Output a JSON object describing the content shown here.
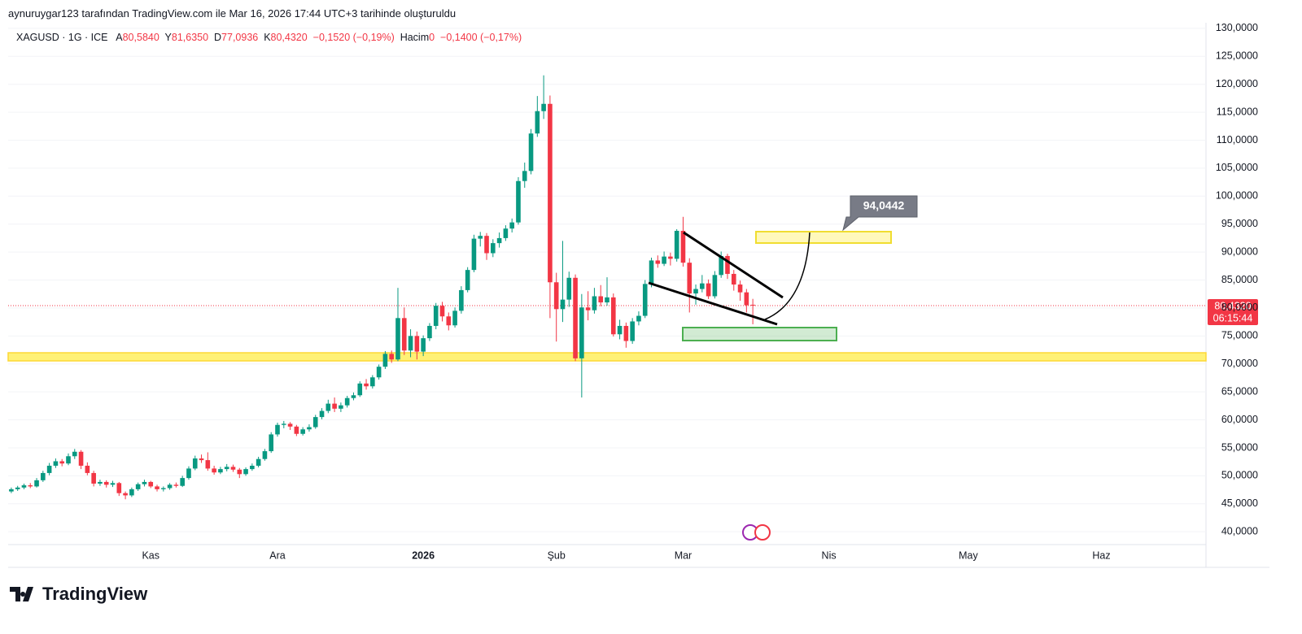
{
  "header": "aynuruygar123 tarafından TradingView.com ile Mar 16, 2026 17:44 UTC+3 tarihinde oluşturuldu",
  "legend": {
    "symbol": "XAGUSD · 1G · ICE",
    "open_label": "A",
    "open": "80,5840",
    "high_label": "Y",
    "high": "81,6350",
    "low_label": "D",
    "low": "77,0936",
    "close_label": "K",
    "close": "80,4320",
    "change": "−0,1520 (−0,19%)",
    "volume_label": "Hacim",
    "volume": "0",
    "volume_change": "−0,1400 (−0,17%)"
  },
  "price_tag": "80,4320",
  "countdown": "06:15:44",
  "target_label": "94,0442",
  "brand": "TradingView",
  "chart_data": {
    "type": "candlestick",
    "up_color": "#089981",
    "down_color": "#f23645",
    "grid": true,
    "ylim": [
      37.7,
      131.0
    ],
    "yticks": [
      {
        "value": 40,
        "label": "40,0000"
      },
      {
        "value": 45,
        "label": "45,0000"
      },
      {
        "value": 50,
        "label": "50,0000"
      },
      {
        "value": 55,
        "label": "55,0000"
      },
      {
        "value": 60,
        "label": "60,0000"
      },
      {
        "value": 65,
        "label": "65,0000"
      },
      {
        "value": 70,
        "label": "70,0000"
      },
      {
        "value": 75,
        "label": "75,0000"
      },
      {
        "value": 80,
        "label": "80,0000"
      },
      {
        "value": 85,
        "label": "85,0000"
      },
      {
        "value": 90,
        "label": "90,0000"
      },
      {
        "value": 95,
        "label": "95,0000"
      },
      {
        "value": 100,
        "label": "100,0000"
      },
      {
        "value": 105,
        "label": "105,0000"
      },
      {
        "value": 110,
        "label": "110,0000"
      },
      {
        "value": 115,
        "label": "115,0000"
      },
      {
        "value": 120,
        "label": "120,0000"
      },
      {
        "value": 125,
        "label": "125,0000"
      },
      {
        "value": 130,
        "label": "130,0000"
      }
    ],
    "last_price": 80.432,
    "categories": [
      null,
      null,
      null,
      null,
      null,
      null,
      null,
      null,
      null,
      null,
      null,
      null,
      null,
      null,
      null,
      null,
      null,
      null,
      null,
      null,
      null,
      null,
      "Kas",
      null,
      null,
      null,
      null,
      null,
      null,
      null,
      null,
      null,
      null,
      null,
      null,
      null,
      null,
      null,
      null,
      null,
      null,
      null,
      "Ara",
      null,
      null,
      null,
      null,
      null,
      null,
      null,
      null,
      null,
      null,
      null,
      null,
      null,
      null,
      null,
      null,
      null,
      null,
      null,
      null,
      null,
      null,
      "2026",
      null,
      null,
      null,
      null,
      null,
      null,
      null,
      null,
      null,
      null,
      null,
      null,
      null,
      null,
      null,
      null,
      null,
      null,
      null,
      null,
      "Şub",
      null,
      null,
      null,
      null,
      null,
      null,
      null,
      null,
      null,
      null,
      null,
      null,
      null,
      null,
      null,
      null,
      null,
      null,
      null,
      "Mar",
      null,
      null,
      null,
      null,
      null,
      null,
      null,
      null,
      null,
      null,
      null,
      null,
      null,
      null,
      null,
      null,
      null,
      null,
      null,
      null,
      null,
      null,
      "Nis",
      null,
      null,
      null,
      null,
      null,
      null,
      null,
      null,
      null,
      null,
      null,
      null,
      null,
      null,
      null,
      null,
      null,
      null,
      null,
      null,
      null,
      "May",
      null,
      null,
      null,
      null,
      null,
      null,
      null,
      null,
      null,
      null,
      null,
      null,
      null,
      null,
      null,
      null,
      null,
      null,
      null,
      null,
      "Haz",
      null,
      null,
      null,
      null,
      null,
      null,
      null,
      null,
      null,
      null,
      null,
      null,
      null,
      null,
      null,
      null
    ],
    "ohlc": [
      [
        47.2,
        47.9,
        46.9,
        47.6
      ],
      [
        47.6,
        48.2,
        47.3,
        47.9
      ],
      [
        47.9,
        48.6,
        47.6,
        48.3
      ],
      [
        48.3,
        48.7,
        47.8,
        48.1
      ],
      [
        48.1,
        49.6,
        47.9,
        49.2
      ],
      [
        49.2,
        50.9,
        48.9,
        50.5
      ],
      [
        50.5,
        52.3,
        50.1,
        51.8
      ],
      [
        51.8,
        53.1,
        51.4,
        52.6
      ],
      [
        52.6,
        53.0,
        51.7,
        52.2
      ],
      [
        52.2,
        54.0,
        51.9,
        53.5
      ],
      [
        53.5,
        54.8,
        53.0,
        54.3
      ],
      [
        54.3,
        54.6,
        51.2,
        51.8
      ],
      [
        51.8,
        52.4,
        50.1,
        50.5
      ],
      [
        50.5,
        50.9,
        48.1,
        48.6
      ],
      [
        48.6,
        49.3,
        48.2,
        48.9
      ],
      [
        48.9,
        49.2,
        47.9,
        48.4
      ],
      [
        48.4,
        49.1,
        48.0,
        48.7
      ],
      [
        48.7,
        48.9,
        46.4,
        46.9
      ],
      [
        46.9,
        47.2,
        45.8,
        46.5
      ],
      [
        46.5,
        47.9,
        46.2,
        47.6
      ],
      [
        47.6,
        48.8,
        47.3,
        48.5
      ],
      [
        48.5,
        49.3,
        48.1,
        48.9
      ],
      [
        48.9,
        49.1,
        47.8,
        48.1
      ],
      [
        48.1,
        48.4,
        47.2,
        47.6
      ],
      [
        47.6,
        48.1,
        47.2,
        47.8
      ],
      [
        47.8,
        48.7,
        47.5,
        48.4
      ],
      [
        48.4,
        48.8,
        47.9,
        48.2
      ],
      [
        48.2,
        50.0,
        48.0,
        49.6
      ],
      [
        49.6,
        51.7,
        49.3,
        51.3
      ],
      [
        51.3,
        53.6,
        51.0,
        53.1
      ],
      [
        53.1,
        53.8,
        52.3,
        52.8
      ],
      [
        52.8,
        54.2,
        50.9,
        51.3
      ],
      [
        51.3,
        51.8,
        50.2,
        50.6
      ],
      [
        50.6,
        51.6,
        50.3,
        51.2
      ],
      [
        51.2,
        52.1,
        50.8,
        51.6
      ],
      [
        51.6,
        52.0,
        50.7,
        51.1
      ],
      [
        51.1,
        51.4,
        49.6,
        50.3
      ],
      [
        50.3,
        51.5,
        50.0,
        51.2
      ],
      [
        51.2,
        52.2,
        50.9,
        51.8
      ],
      [
        51.8,
        53.4,
        51.5,
        53.0
      ],
      [
        53.0,
        54.8,
        52.7,
        54.4
      ],
      [
        54.4,
        57.8,
        54.1,
        57.4
      ],
      [
        57.4,
        59.5,
        57.0,
        59.1
      ],
      [
        59.1,
        59.8,
        58.5,
        59.3
      ],
      [
        59.3,
        59.6,
        58.2,
        58.8
      ],
      [
        58.8,
        59.1,
        57.1,
        57.5
      ],
      [
        57.5,
        58.7,
        57.2,
        58.3
      ],
      [
        58.3,
        59.2,
        57.9,
        58.7
      ],
      [
        58.7,
        60.9,
        58.4,
        60.5
      ],
      [
        60.5,
        62.1,
        60.1,
        61.6
      ],
      [
        61.6,
        63.6,
        61.2,
        62.9
      ],
      [
        62.9,
        64.0,
        61.4,
        62.0
      ],
      [
        62.0,
        63.1,
        61.4,
        62.6
      ],
      [
        62.6,
        64.3,
        62.2,
        63.9
      ],
      [
        63.9,
        64.9,
        63.5,
        64.4
      ],
      [
        64.4,
        66.9,
        64.1,
        66.5
      ],
      [
        66.5,
        67.3,
        65.4,
        66.0
      ],
      [
        66.0,
        68.0,
        65.6,
        67.6
      ],
      [
        67.6,
        69.9,
        67.2,
        69.5
      ],
      [
        69.5,
        72.3,
        69.1,
        71.8
      ],
      [
        71.8,
        72.4,
        70.2,
        70.8
      ],
      [
        70.8,
        83.6,
        70.5,
        78.2
      ],
      [
        78.2,
        80.1,
        71.6,
        72.4
      ],
      [
        72.4,
        76.2,
        71.2,
        75.0
      ],
      [
        75.0,
        75.8,
        70.8,
        72.2
      ],
      [
        72.2,
        75.1,
        71.4,
        74.6
      ],
      [
        74.6,
        77.3,
        74.1,
        76.8
      ],
      [
        76.8,
        80.9,
        76.2,
        80.4
      ],
      [
        80.4,
        81.1,
        77.6,
        78.5
      ],
      [
        78.5,
        79.2,
        76.0,
        76.9
      ],
      [
        76.9,
        80.1,
        76.5,
        79.5
      ],
      [
        79.5,
        83.9,
        79.0,
        83.2
      ],
      [
        83.2,
        87.3,
        82.8,
        86.8
      ],
      [
        86.8,
        93.1,
        86.4,
        92.4
      ],
      [
        92.4,
        93.6,
        91.0,
        92.9
      ],
      [
        92.9,
        93.4,
        88.6,
        89.8
      ],
      [
        89.8,
        92.3,
        89.1,
        91.6
      ],
      [
        91.6,
        93.5,
        90.8,
        92.5
      ],
      [
        92.5,
        94.8,
        92.0,
        94.2
      ],
      [
        94.2,
        96.0,
        93.5,
        95.3
      ],
      [
        95.3,
        103.4,
        94.9,
        102.7
      ],
      [
        102.7,
        106.0,
        101.5,
        104.5
      ],
      [
        104.5,
        112.0,
        103.9,
        111.2
      ],
      [
        111.2,
        117.9,
        110.6,
        115.2
      ],
      [
        115.2,
        121.6,
        113.8,
        116.5
      ],
      [
        116.5,
        118.0,
        78.2,
        84.6
      ],
      [
        84.6,
        86.3,
        74.0,
        79.8
      ],
      [
        79.8,
        92.0,
        77.5,
        81.5
      ],
      [
        81.5,
        86.5,
        80.2,
        85.4
      ],
      [
        85.4,
        86.0,
        70.5,
        71.0
      ],
      [
        71.0,
        82.5,
        64.0,
        80.1
      ],
      [
        80.1,
        83.0,
        77.8,
        79.6
      ],
      [
        79.6,
        83.6,
        79.0,
        82.1
      ],
      [
        82.1,
        84.1,
        80.3,
        81.0
      ],
      [
        81.0,
        85.5,
        80.4,
        81.9
      ],
      [
        81.9,
        82.6,
        74.9,
        75.3
      ],
      [
        75.3,
        77.9,
        74.4,
        76.8
      ],
      [
        76.8,
        77.4,
        72.9,
        74.1
      ],
      [
        74.1,
        78.2,
        73.6,
        77.6
      ],
      [
        77.6,
        79.4,
        76.9,
        78.6
      ],
      [
        78.6,
        85.0,
        78.2,
        84.3
      ],
      [
        84.3,
        89.0,
        83.7,
        88.5
      ],
      [
        88.5,
        89.4,
        87.2,
        87.9
      ],
      [
        87.9,
        90.1,
        87.5,
        89.2
      ],
      [
        89.2,
        89.9,
        87.6,
        88.8
      ],
      [
        88.8,
        94.1,
        88.3,
        93.8
      ],
      [
        93.8,
        96.3,
        87.4,
        88.1
      ],
      [
        88.1,
        88.9,
        79.2,
        82.6
      ],
      [
        82.6,
        84.2,
        80.6,
        83.4
      ],
      [
        83.4,
        85.9,
        82.8,
        84.4
      ],
      [
        84.4,
        85.1,
        81.6,
        82.1
      ],
      [
        82.1,
        86.6,
        81.7,
        85.9
      ],
      [
        85.9,
        90.1,
        85.4,
        89.3
      ],
      [
        89.3,
        89.7,
        85.2,
        86.1
      ],
      [
        86.1,
        86.8,
        83.1,
        84.2
      ],
      [
        84.2,
        84.9,
        81.3,
        82.8
      ],
      [
        82.8,
        83.4,
        79.2,
        80.5
      ],
      [
        80.584,
        81.635,
        77.0936,
        80.432
      ],
      null,
      null,
      null,
      null,
      null,
      null,
      null,
      null,
      null,
      null,
      null,
      null,
      null,
      null,
      null,
      null,
      null,
      null,
      null,
      null,
      null,
      null,
      null,
      null,
      null,
      null,
      null,
      null,
      null,
      null,
      null,
      null,
      null,
      null,
      null,
      null,
      null,
      null,
      null,
      null,
      null,
      null,
      null,
      null,
      null,
      null,
      null,
      null,
      null,
      null,
      null,
      null,
      null,
      null,
      null,
      null,
      null,
      null,
      null,
      null,
      null,
      null,
      null,
      null,
      null,
      null,
      null,
      null,
      null,
      null,
      null
    ]
  }
}
